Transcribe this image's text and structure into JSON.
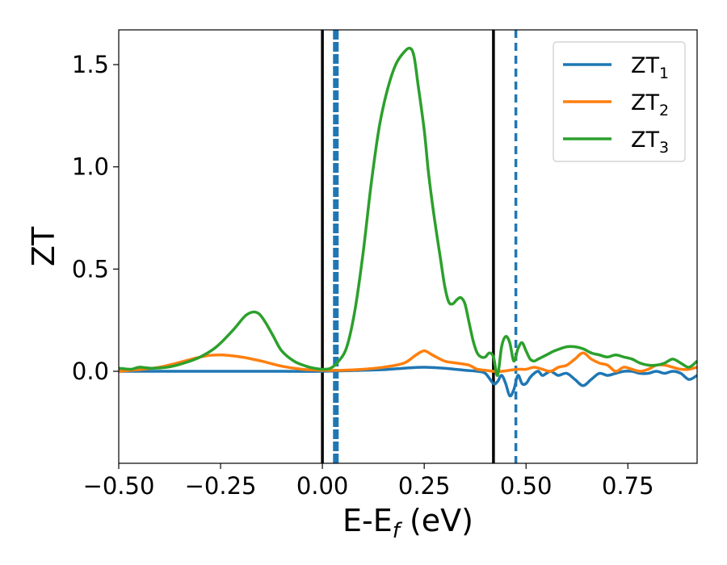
{
  "chart_data": {
    "type": "line",
    "xlabel_main": "E-E",
    "xlabel_sub": "f",
    "xlabel_unit": " (eV)",
    "ylabel": "ZT",
    "xlim": [
      -0.5,
      0.92
    ],
    "ylim": [
      -0.45,
      1.67
    ],
    "xticks": [
      -0.5,
      -0.25,
      0.0,
      0.25,
      0.5,
      0.75
    ],
    "xtick_labels": [
      "−0.50",
      "−0.25",
      "0.00",
      "0.25",
      "0.50",
      "0.75"
    ],
    "yticks": [
      0.0,
      0.5,
      1.0,
      1.5
    ],
    "ytick_labels": [
      "0.0",
      "0.5",
      "1.0",
      "1.5"
    ],
    "grid": false,
    "legend_placement": "top-right",
    "vertical_lines": [
      {
        "x": 0.0,
        "color": "#000000",
        "style": "solid",
        "weight": "normal"
      },
      {
        "x": 0.033,
        "color": "#1f77b4",
        "style": "dashed",
        "weight": "heavy"
      },
      {
        "x": 0.42,
        "color": "#000000",
        "style": "solid",
        "weight": "normal"
      },
      {
        "x": 0.475,
        "color": "#1f77b4",
        "style": "dashed",
        "weight": "normal"
      }
    ],
    "series": [
      {
        "name_main": "ZT",
        "name_sub": "1",
        "color": "#1f77b4",
        "x": [
          -0.5,
          -0.3,
          -0.1,
          0.0,
          0.1,
          0.15,
          0.2,
          0.25,
          0.3,
          0.35,
          0.38,
          0.4,
          0.42,
          0.43,
          0.44,
          0.45,
          0.46,
          0.47,
          0.48,
          0.49,
          0.5,
          0.51,
          0.52,
          0.53,
          0.54,
          0.55,
          0.56,
          0.57,
          0.58,
          0.6,
          0.62,
          0.64,
          0.66,
          0.68,
          0.7,
          0.72,
          0.74,
          0.76,
          0.78,
          0.8,
          0.82,
          0.84,
          0.86,
          0.88,
          0.9,
          0.92
        ],
        "values": [
          0.0,
          0.0,
          0.0,
          0.0,
          0.005,
          0.008,
          0.015,
          0.02,
          0.015,
          0.005,
          0.0,
          -0.01,
          -0.06,
          -0.05,
          -0.02,
          -0.06,
          -0.12,
          -0.09,
          -0.02,
          -0.06,
          -0.06,
          -0.03,
          -0.01,
          0.0,
          -0.02,
          -0.01,
          0.0,
          -0.01,
          -0.02,
          -0.01,
          -0.04,
          -0.07,
          -0.04,
          -0.01,
          -0.02,
          -0.01,
          0.0,
          0.0,
          -0.01,
          -0.01,
          0.0,
          -0.01,
          0.0,
          -0.01,
          -0.04,
          -0.02
        ]
      },
      {
        "name_main": "ZT",
        "name_sub": "2",
        "color": "#ff7f0e",
        "x": [
          -0.5,
          -0.4,
          -0.3,
          -0.25,
          -0.2,
          -0.15,
          -0.1,
          -0.05,
          0.0,
          0.05,
          0.1,
          0.15,
          0.2,
          0.23,
          0.25,
          0.27,
          0.3,
          0.33,
          0.36,
          0.38,
          0.4,
          0.42,
          0.44,
          0.46,
          0.48,
          0.5,
          0.52,
          0.54,
          0.56,
          0.58,
          0.6,
          0.62,
          0.64,
          0.66,
          0.68,
          0.7,
          0.72,
          0.74,
          0.76,
          0.78,
          0.8,
          0.82,
          0.84,
          0.86,
          0.88,
          0.9,
          0.92
        ],
        "values": [
          0.0,
          0.02,
          0.07,
          0.08,
          0.07,
          0.05,
          0.025,
          0.01,
          0.005,
          0.005,
          0.01,
          0.02,
          0.04,
          0.08,
          0.1,
          0.08,
          0.05,
          0.04,
          0.03,
          0.01,
          0.005,
          0.0,
          0.0,
          0.005,
          0.01,
          0.01,
          0.02,
          0.01,
          0.0,
          0.02,
          0.03,
          0.06,
          0.09,
          0.06,
          0.04,
          0.03,
          0.0,
          0.02,
          0.01,
          0.0,
          0.01,
          0.03,
          0.03,
          0.02,
          0.01,
          0.01,
          0.02
        ]
      },
      {
        "name_main": "ZT",
        "name_sub": "3",
        "color": "#2ca02c",
        "x": [
          -0.5,
          -0.47,
          -0.45,
          -0.42,
          -0.38,
          -0.34,
          -0.3,
          -0.26,
          -0.22,
          -0.19,
          -0.17,
          -0.155,
          -0.14,
          -0.12,
          -0.1,
          -0.07,
          -0.04,
          -0.02,
          0.0,
          0.02,
          0.04,
          0.06,
          0.08,
          0.1,
          0.12,
          0.14,
          0.16,
          0.18,
          0.2,
          0.215,
          0.225,
          0.235,
          0.25,
          0.26,
          0.27,
          0.28,
          0.29,
          0.3,
          0.31,
          0.32,
          0.33,
          0.34,
          0.35,
          0.36,
          0.37,
          0.38,
          0.39,
          0.4,
          0.41,
          0.42,
          0.43,
          0.44,
          0.45,
          0.46,
          0.47,
          0.48,
          0.49,
          0.5,
          0.51,
          0.52,
          0.53,
          0.55,
          0.57,
          0.6,
          0.62,
          0.64,
          0.66,
          0.68,
          0.7,
          0.72,
          0.74,
          0.76,
          0.78,
          0.8,
          0.82,
          0.84,
          0.86,
          0.88,
          0.9,
          0.92
        ],
        "values": [
          0.015,
          0.01,
          0.02,
          0.015,
          0.02,
          0.04,
          0.07,
          0.12,
          0.2,
          0.27,
          0.29,
          0.28,
          0.24,
          0.17,
          0.1,
          0.05,
          0.025,
          0.015,
          0.01,
          0.015,
          0.05,
          0.12,
          0.3,
          0.58,
          0.92,
          1.2,
          1.38,
          1.5,
          1.56,
          1.58,
          1.54,
          1.4,
          1.18,
          0.98,
          0.82,
          0.68,
          0.55,
          0.42,
          0.34,
          0.33,
          0.35,
          0.36,
          0.33,
          0.24,
          0.15,
          0.09,
          0.07,
          0.07,
          0.09,
          0.07,
          -0.02,
          0.12,
          0.17,
          0.14,
          0.05,
          0.11,
          0.14,
          0.1,
          0.06,
          0.05,
          0.06,
          0.08,
          0.1,
          0.12,
          0.12,
          0.11,
          0.09,
          0.08,
          0.07,
          0.08,
          0.07,
          0.06,
          0.04,
          0.03,
          0.03,
          0.04,
          0.06,
          0.04,
          0.02,
          0.05
        ]
      }
    ]
  }
}
